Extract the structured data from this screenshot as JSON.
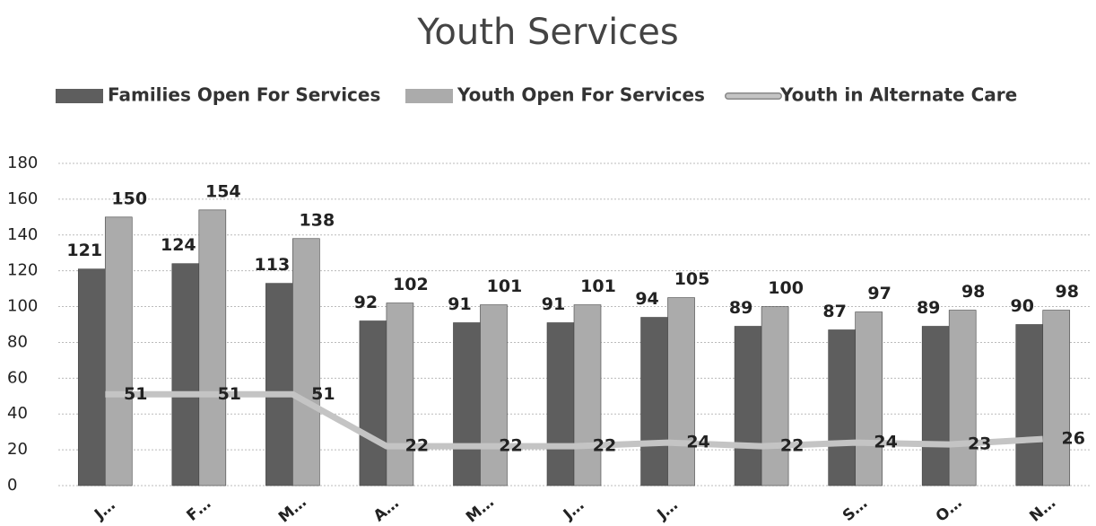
{
  "chart_data": {
    "type": "bar",
    "title": "Youth Services",
    "categories": [
      "J…",
      "F…",
      "M…",
      "A…",
      "M…",
      "J…",
      "J…",
      null,
      "S…",
      "O…",
      "N…"
    ],
    "series": [
      {
        "name": "Families Open For Services",
        "type": "bar",
        "color": "#5e5e5e",
        "values": [
          121,
          124,
          113,
          92,
          91,
          91,
          94,
          89,
          87,
          89,
          90
        ]
      },
      {
        "name": "Youth Open For Services",
        "type": "bar",
        "color": "#ababab",
        "values": [
          150,
          154,
          138,
          102,
          101,
          101,
          105,
          100,
          97,
          98,
          98
        ]
      },
      {
        "name": "Youth in Alternate Care",
        "type": "line",
        "color": "#c4c4c4",
        "values": [
          51,
          51,
          51,
          22,
          22,
          22,
          24,
          22,
          24,
          23,
          26
        ]
      }
    ],
    "ylim": [
      0,
      180
    ],
    "yticks": [
      0,
      20,
      40,
      60,
      80,
      100,
      120,
      140,
      160,
      180
    ],
    "grid": true,
    "legend": "top"
  }
}
